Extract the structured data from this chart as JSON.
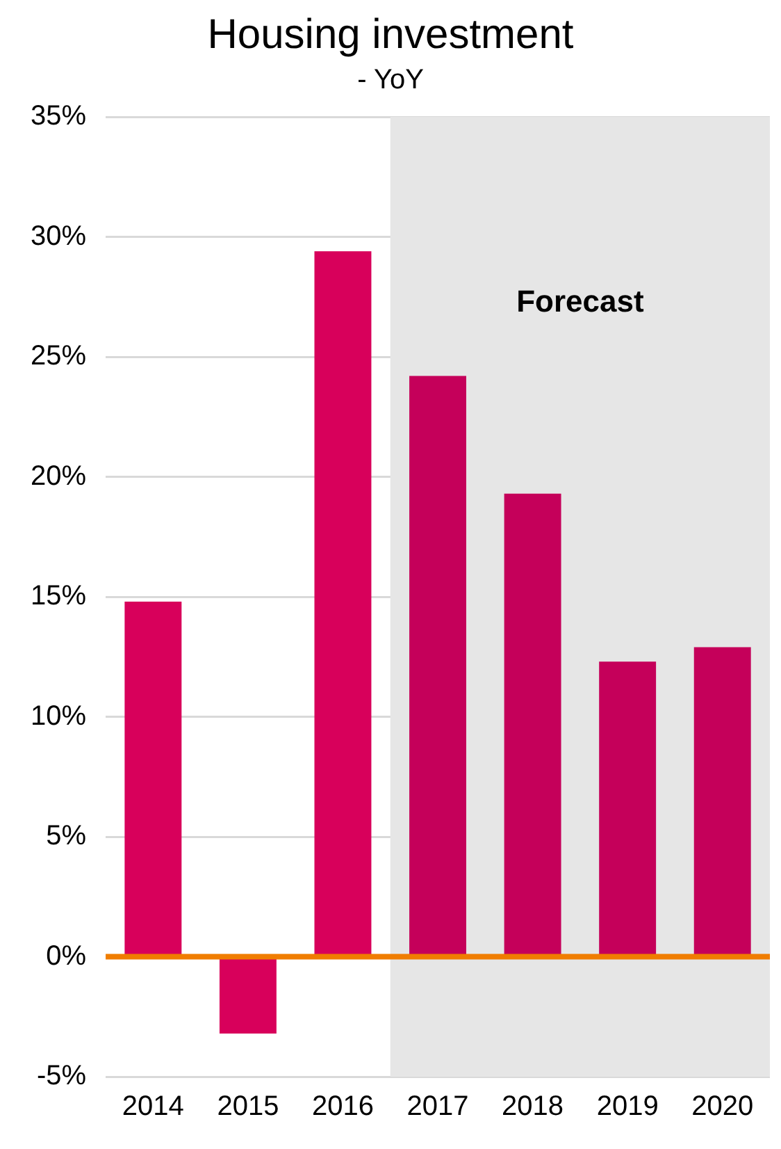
{
  "chart_data": {
    "type": "bar",
    "title": "Housing investment",
    "subtitle": "- YoY",
    "categories": [
      "2014",
      "2015",
      "2016",
      "2017",
      "2018",
      "2019",
      "2020"
    ],
    "values": [
      14.8,
      -3.2,
      29.4,
      24.2,
      19.3,
      12.3,
      12.9
    ],
    "colors": [
      "#d8005b",
      "#d8005b",
      "#d8005b",
      "#c5005a",
      "#c5005a",
      "#c5005a",
      "#c5005a"
    ],
    "ylim": [
      -5,
      35
    ],
    "yticks": [
      {
        "value": -5,
        "label": "-5%"
      },
      {
        "value": 0,
        "label": "0%"
      },
      {
        "value": 5,
        "label": "5%"
      },
      {
        "value": 10,
        "label": "10%"
      },
      {
        "value": 15,
        "label": "15%"
      },
      {
        "value": 20,
        "label": "20%"
      },
      {
        "value": 25,
        "label": "25%"
      },
      {
        "value": 30,
        "label": "30%"
      },
      {
        "value": 35,
        "label": "35%"
      }
    ],
    "grid": "y",
    "legend": false,
    "ref_lines": [
      {
        "axis": "y",
        "value": 0,
        "color": "#f07d00"
      }
    ],
    "bands": [
      {
        "axis": "x",
        "from": "2017",
        "to": "2020",
        "label": "Forecast",
        "color": "#e6e6e6"
      }
    ]
  }
}
